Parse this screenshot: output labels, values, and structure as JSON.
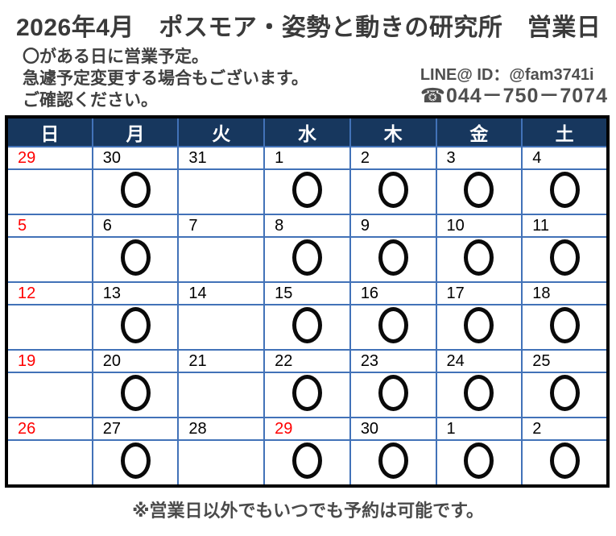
{
  "header": {
    "title": "2026年4月　ポスモア・姿勢と動きの研究所　営業日",
    "notes": [
      "〇がある日に営業予定。",
      "急遽予定変更する場合もございます。",
      "ご確認ください。"
    ],
    "contact": {
      "line_id": "LINE@ ID：@fam3741i",
      "phone": "☎044－750－7074"
    }
  },
  "calendar": {
    "weekday_headers": [
      "日",
      "月",
      "火",
      "水",
      "木",
      "金",
      "土"
    ],
    "open_mark": "〇",
    "weeks": [
      {
        "days": [
          {
            "date": "29",
            "color": "red",
            "bg": "gray",
            "open": false
          },
          {
            "date": "30",
            "color": "black",
            "bg": "gray",
            "open": true
          },
          {
            "date": "31",
            "color": "black",
            "bg": "gray",
            "open": false
          },
          {
            "date": "1",
            "color": "black",
            "bg": "white",
            "open": true
          },
          {
            "date": "2",
            "color": "black",
            "bg": "white",
            "open": true
          },
          {
            "date": "3",
            "color": "black",
            "bg": "white",
            "open": true
          },
          {
            "date": "4",
            "color": "black",
            "bg": "sat",
            "open": true
          }
        ]
      },
      {
        "days": [
          {
            "date": "5",
            "color": "red",
            "bg": "sun",
            "open": false
          },
          {
            "date": "6",
            "color": "black",
            "bg": "white",
            "open": true
          },
          {
            "date": "7",
            "color": "black",
            "bg": "white",
            "open": false
          },
          {
            "date": "8",
            "color": "black",
            "bg": "white",
            "open": true
          },
          {
            "date": "9",
            "color": "black",
            "bg": "white",
            "open": true
          },
          {
            "date": "10",
            "color": "black",
            "bg": "white",
            "open": true
          },
          {
            "date": "11",
            "color": "black",
            "bg": "sat",
            "open": true
          }
        ]
      },
      {
        "days": [
          {
            "date": "12",
            "color": "red",
            "bg": "sun",
            "open": false
          },
          {
            "date": "13",
            "color": "black",
            "bg": "white",
            "open": true
          },
          {
            "date": "14",
            "color": "black",
            "bg": "white",
            "open": false
          },
          {
            "date": "15",
            "color": "black",
            "bg": "white",
            "open": true
          },
          {
            "date": "16",
            "color": "black",
            "bg": "white",
            "open": true
          },
          {
            "date": "17",
            "color": "black",
            "bg": "white",
            "open": true
          },
          {
            "date": "18",
            "color": "black",
            "bg": "sat",
            "open": true
          }
        ]
      },
      {
        "days": [
          {
            "date": "19",
            "color": "red",
            "bg": "sun",
            "open": false
          },
          {
            "date": "20",
            "color": "black",
            "bg": "white",
            "open": true
          },
          {
            "date": "21",
            "color": "black",
            "bg": "white",
            "open": false
          },
          {
            "date": "22",
            "color": "black",
            "bg": "white",
            "open": true
          },
          {
            "date": "23",
            "color": "black",
            "bg": "white",
            "open": true
          },
          {
            "date": "24",
            "color": "black",
            "bg": "white",
            "open": true
          },
          {
            "date": "25",
            "color": "black",
            "bg": "sat",
            "open": true
          }
        ]
      },
      {
        "days": [
          {
            "date": "26",
            "color": "red",
            "bg": "sun",
            "open": false
          },
          {
            "date": "27",
            "color": "black",
            "bg": "white",
            "open": true
          },
          {
            "date": "28",
            "color": "black",
            "bg": "white",
            "open": false
          },
          {
            "date": "29",
            "color": "red",
            "bg": "white",
            "open": true
          },
          {
            "date": "30",
            "color": "black",
            "bg": "white",
            "open": true
          },
          {
            "date": "1",
            "color": "black",
            "bg": "gray",
            "open": true
          },
          {
            "date": "2",
            "color": "black",
            "bg": "gray",
            "open": true
          }
        ]
      }
    ]
  },
  "footer": {
    "note": "※営業日以外でもいつでも予約は可能です。"
  },
  "colors": {
    "header_bg": "#17375e",
    "grid_line": "#4272b8",
    "outer_border": "#000000",
    "other_month_bg": "#d9d9d9",
    "sunday_bg": "#bed3f5",
    "saturday_bg": "#d3eaf8",
    "holiday_red": "#ff0000",
    "date_black": "#000000",
    "title_text": "#3a3a3a",
    "circle_mark": "#0a0a0a"
  }
}
